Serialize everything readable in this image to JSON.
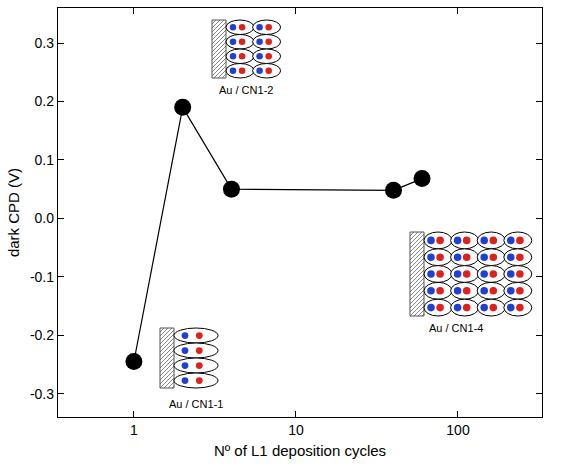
{
  "chart_data": {
    "type": "line",
    "marker": "circle",
    "color": "#000000",
    "x_label": "Nº of L1 deposition cycles",
    "y_label": "dark CPD (V)",
    "x": [
      1,
      2,
      4,
      40,
      60
    ],
    "values": [
      -0.245,
      0.19,
      0.05,
      0.048,
      0.068
    ],
    "log": "x",
    "grid": false,
    "xlim": [
      0.34,
      330
    ],
    "xticks": [
      1,
      10,
      100
    ],
    "ylim": [
      -0.34,
      0.36
    ],
    "yticks": [
      -0.3,
      -0.2,
      -0.1,
      {
        "value": 0,
        "label": "0.0"
      },
      0.1,
      0.2,
      0.3
    ],
    "annotations": [
      "Au / CN1-1",
      "Au / CN1-2",
      "Au / CN1-4"
    ]
  }
}
